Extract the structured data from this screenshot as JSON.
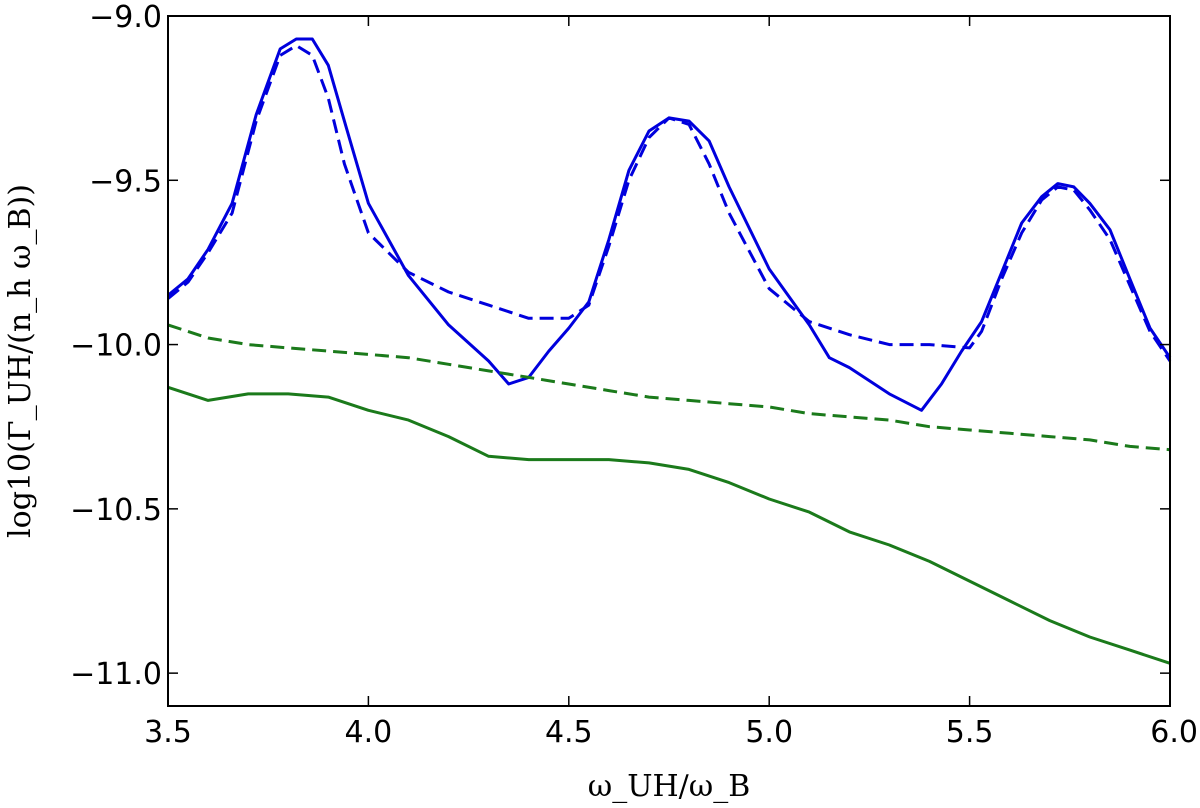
{
  "chart_data": {
    "type": "line",
    "xlabel": "ω_UH/ω_B",
    "ylabel": "log10(Γ_UH/(n_h ω_B))",
    "xlim": [
      3.5,
      6.0
    ],
    "ylim": [
      -11.1,
      -9.0
    ],
    "xticks": [
      3.5,
      4.0,
      4.5,
      5.0,
      5.5,
      6.0
    ],
    "xtick_labels": [
      "3.5",
      "4.0",
      "4.5",
      "5.0",
      "5.5",
      "6.0"
    ],
    "yticks": [
      -9.0,
      -9.5,
      -10.0,
      -10.5,
      -11.0
    ],
    "ytick_labels": [
      "−9.0",
      "−9.5",
      "−10.0",
      "−10.5",
      "−11.0"
    ],
    "grid": false,
    "series": [
      {
        "color": "#0000dd",
        "style": "solid",
        "x": [
          3.5,
          3.55,
          3.6,
          3.66,
          3.72,
          3.78,
          3.82,
          3.86,
          3.9,
          3.94,
          4.0,
          4.1,
          4.2,
          4.3,
          4.35,
          4.4,
          4.45,
          4.5,
          4.55,
          4.6,
          4.65,
          4.7,
          4.75,
          4.8,
          4.85,
          4.9,
          5.0,
          5.1,
          5.15,
          5.2,
          5.3,
          5.38,
          5.43,
          5.48,
          5.53,
          5.58,
          5.63,
          5.68,
          5.72,
          5.76,
          5.8,
          5.85,
          5.9,
          5.95,
          6.0
        ],
        "y": [
          -9.85,
          -9.8,
          -9.71,
          -9.57,
          -9.3,
          -9.1,
          -9.07,
          -9.07,
          -9.15,
          -9.32,
          -9.57,
          -9.79,
          -9.94,
          -10.05,
          -10.12,
          -10.1,
          -10.02,
          -9.95,
          -9.87,
          -9.68,
          -9.47,
          -9.35,
          -9.31,
          -9.32,
          -9.38,
          -9.52,
          -9.77,
          -9.94,
          -10.04,
          -10.07,
          -10.15,
          -10.2,
          -10.12,
          -10.02,
          -9.93,
          -9.78,
          -9.63,
          -9.55,
          -9.51,
          -9.52,
          -9.57,
          -9.65,
          -9.8,
          -9.95,
          -10.04
        ]
      },
      {
        "color": "#0000dd",
        "style": "dashed",
        "x": [
          3.5,
          3.55,
          3.6,
          3.66,
          3.72,
          3.78,
          3.82,
          3.86,
          3.9,
          3.94,
          4.0,
          4.1,
          4.2,
          4.3,
          4.4,
          4.5,
          4.55,
          4.6,
          4.65,
          4.7,
          4.75,
          4.8,
          4.85,
          4.9,
          5.0,
          5.1,
          5.2,
          5.3,
          5.4,
          5.5,
          5.53,
          5.58,
          5.63,
          5.68,
          5.72,
          5.76,
          5.8,
          5.85,
          5.9,
          5.95,
          6.0
        ],
        "y": [
          -9.86,
          -9.81,
          -9.72,
          -9.6,
          -9.32,
          -9.12,
          -9.09,
          -9.12,
          -9.25,
          -9.45,
          -9.66,
          -9.78,
          -9.84,
          -9.88,
          -9.92,
          -9.92,
          -9.88,
          -9.7,
          -9.5,
          -9.37,
          -9.31,
          -9.33,
          -9.45,
          -9.6,
          -9.83,
          -9.93,
          -9.97,
          -10.0,
          -10.0,
          -10.01,
          -9.96,
          -9.8,
          -9.66,
          -9.56,
          -9.52,
          -9.53,
          -9.59,
          -9.68,
          -9.82,
          -9.96,
          -10.05
        ]
      },
      {
        "color": "#1b7a1b",
        "style": "solid",
        "x": [
          3.5,
          3.6,
          3.7,
          3.8,
          3.9,
          4.0,
          4.1,
          4.2,
          4.3,
          4.4,
          4.5,
          4.6,
          4.7,
          4.8,
          4.9,
          5.0,
          5.1,
          5.2,
          5.3,
          5.4,
          5.5,
          5.6,
          5.7,
          5.8,
          5.9,
          6.0
        ],
        "y": [
          -10.13,
          -10.17,
          -10.15,
          -10.15,
          -10.16,
          -10.2,
          -10.23,
          -10.28,
          -10.34,
          -10.35,
          -10.35,
          -10.35,
          -10.36,
          -10.38,
          -10.42,
          -10.47,
          -10.51,
          -10.57,
          -10.61,
          -10.66,
          -10.72,
          -10.78,
          -10.84,
          -10.89,
          -10.93,
          -10.97
        ]
      },
      {
        "color": "#1b7a1b",
        "style": "dashed",
        "x": [
          3.5,
          3.6,
          3.7,
          3.8,
          3.9,
          4.0,
          4.1,
          4.2,
          4.3,
          4.4,
          4.5,
          4.6,
          4.7,
          4.8,
          4.9,
          5.0,
          5.1,
          5.2,
          5.3,
          5.4,
          5.5,
          5.6,
          5.7,
          5.8,
          5.9,
          6.0
        ],
        "y": [
          -9.94,
          -9.98,
          -10.0,
          -10.01,
          -10.02,
          -10.03,
          -10.04,
          -10.06,
          -10.08,
          -10.1,
          -10.12,
          -10.14,
          -10.16,
          -10.17,
          -10.18,
          -10.19,
          -10.21,
          -10.22,
          -10.23,
          -10.25,
          -10.26,
          -10.27,
          -10.28,
          -10.29,
          -10.31,
          -10.32
        ]
      }
    ]
  }
}
